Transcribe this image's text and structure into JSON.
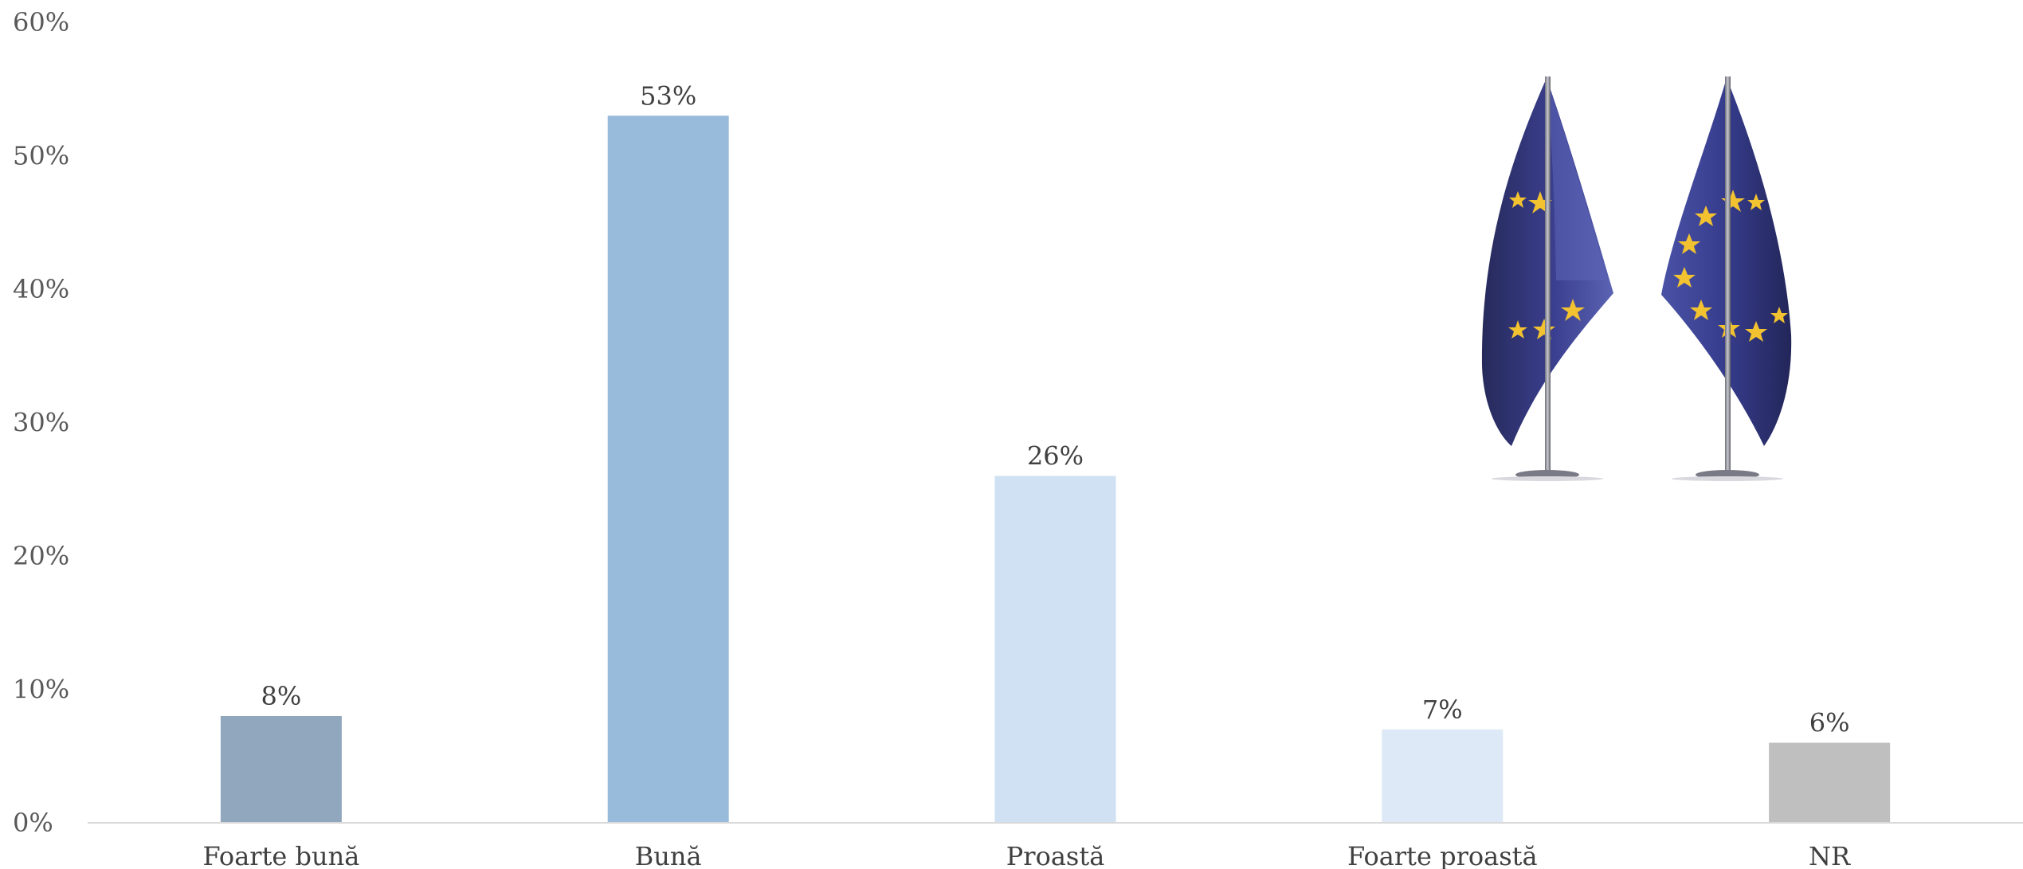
{
  "chart_data": {
    "type": "bar",
    "categories": [
      "Foarte bună",
      "Bună",
      "Proastă",
      "Foarte proastă",
      "NR"
    ],
    "values": [
      8,
      53,
      26,
      7,
      6
    ],
    "data_labels": [
      "8%",
      "53%",
      "26%",
      "7%",
      "6%"
    ],
    "bar_colors": [
      "#91a7be",
      "#98bbdc",
      "#cfe1f2",
      "#dde9f6",
      "#bfbfbf"
    ],
    "ylim": [
      0,
      60
    ],
    "yticks": [
      0,
      10,
      20,
      30,
      40,
      50,
      60
    ],
    "ytick_labels": [
      "0%",
      "10%",
      "20%",
      "30%",
      "40%",
      "50%",
      "60%"
    ],
    "grid": false,
    "legend": "none"
  },
  "decoration": {
    "icon": "eu-table-flags-icon",
    "flag_color": "#2e3a8c",
    "star_color": "#f2c230"
  }
}
